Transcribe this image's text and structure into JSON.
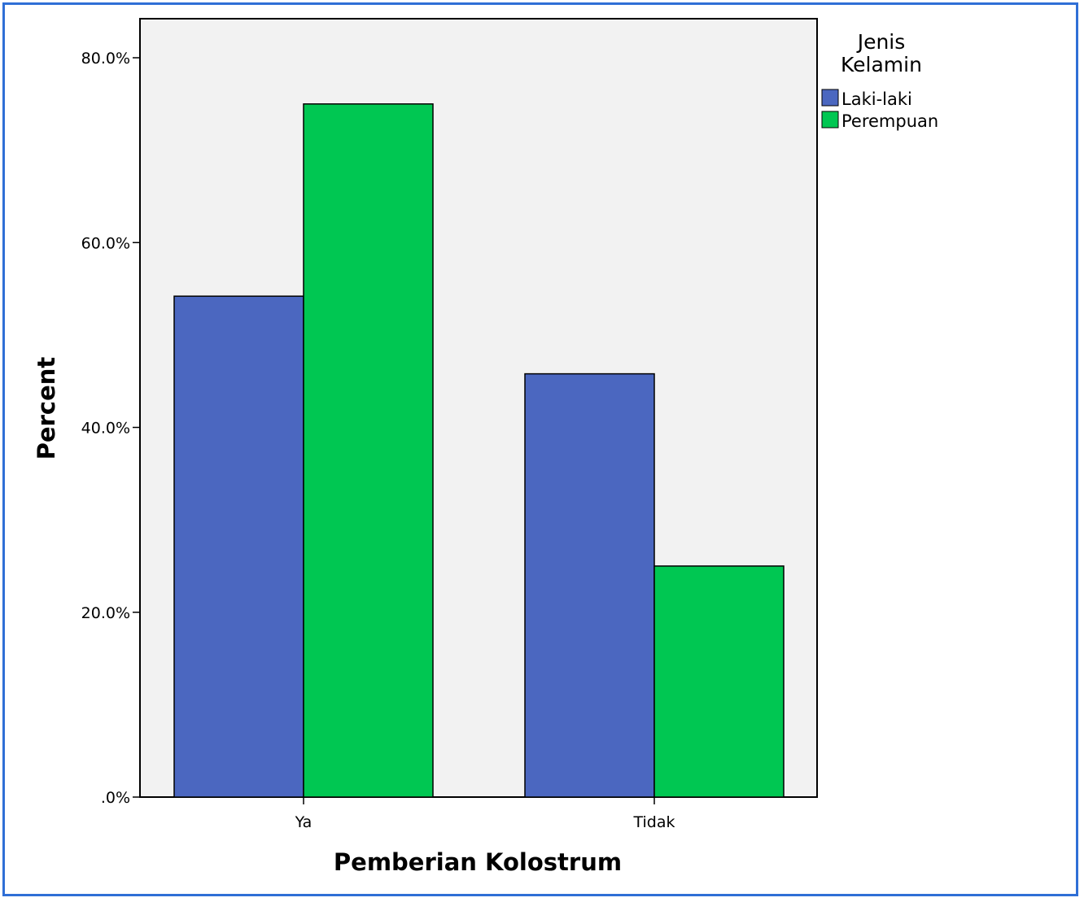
{
  "chart_data": {
    "type": "bar",
    "categories": [
      "Ya",
      "Tidak"
    ],
    "series": [
      {
        "name": "Laki-laki",
        "values": [
          54.2,
          45.8
        ],
        "color": "#4b67c0"
      },
      {
        "name": "Perempuan",
        "values": [
          75.0,
          25.0
        ],
        "color": "#00c752"
      }
    ],
    "xlabel": "Pemberian Kolostrum",
    "ylabel": "Percent",
    "ylim": [
      0,
      80
    ],
    "yticks": [
      0,
      20,
      40,
      60,
      80
    ],
    "ytick_labels": [
      ".0%",
      "20.0%",
      "40.0%",
      "60.0%",
      "80.0%"
    ],
    "legend": {
      "title_lines": [
        "Jenis",
        "Kelamin"
      ],
      "placement": "top-right, outside plot"
    },
    "grid": false,
    "plot_background": "#f2f2f2",
    "frame_color": "#2f6fd6"
  }
}
